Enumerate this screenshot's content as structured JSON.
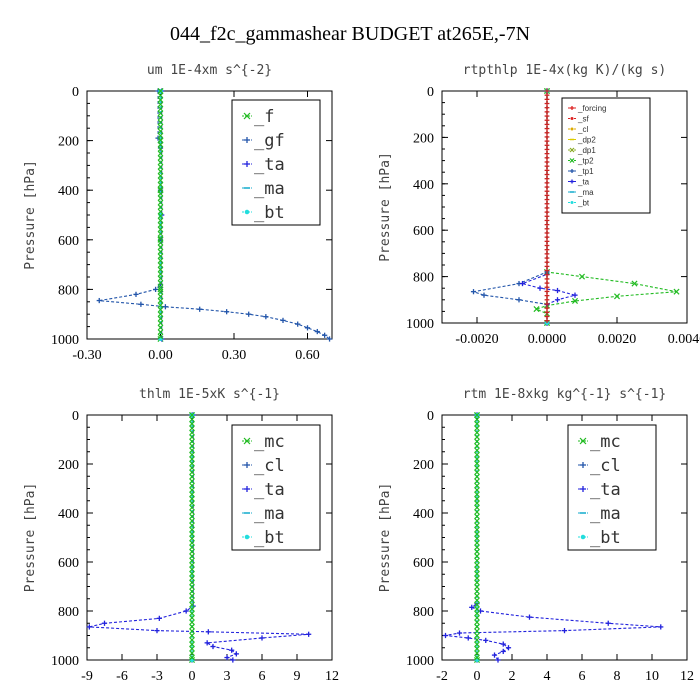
{
  "suptitle": "044_f2c_gammashear  BUDGET at265E,-7N",
  "chart_data": [
    {
      "type": "line",
      "title": "um    1E-4xm  s^{-2}",
      "ylabel": "Pressure [hPa]",
      "xlim": [
        -0.3,
        0.7
      ],
      "ylim": [
        1000,
        0
      ],
      "xticks": [
        "-0.30",
        "0.00",
        "0.30",
        "0.60"
      ],
      "xtick_values": [
        -0.3,
        0.0,
        0.3,
        0.6
      ],
      "yticks": [
        "0",
        "200",
        "400",
        "600",
        "800",
        "1000"
      ],
      "ytick_values": [
        0,
        200,
        400,
        600,
        800,
        1000
      ],
      "legend_style": "big",
      "series": [
        {
          "name": "_f",
          "color": "#22bb22",
          "marker": "x",
          "points": [
            [
              0,
              0
            ],
            [
              0,
              200
            ],
            [
              0,
              400
            ],
            [
              0,
              600
            ],
            [
              0,
              800
            ],
            [
              0,
              1000
            ]
          ]
        },
        {
          "name": "_gf",
          "color": "#2255aa",
          "marker": "+",
          "points": [
            [
              -0.01,
              0
            ],
            [
              -0.01,
              190
            ],
            [
              0.0,
              230
            ],
            [
              0.0,
              400
            ],
            [
              0.0,
              600
            ],
            [
              0.0,
              780
            ],
            [
              -0.02,
              800
            ],
            [
              -0.1,
              820
            ],
            [
              -0.25,
              845
            ],
            [
              -0.08,
              860
            ],
            [
              0.02,
              870
            ],
            [
              0.16,
              880
            ],
            [
              0.27,
              890
            ],
            [
              0.36,
              900
            ],
            [
              0.43,
              910
            ],
            [
              0.5,
              925
            ],
            [
              0.56,
              940
            ],
            [
              0.6,
              955
            ],
            [
              0.64,
              970
            ],
            [
              0.67,
              985
            ],
            [
              0.69,
              1000
            ]
          ]
        },
        {
          "name": "_ta",
          "color": "#2222dd",
          "marker": "+",
          "points": [
            [
              0.005,
              0
            ],
            [
              0.005,
              500
            ],
            [
              0.005,
              1000
            ]
          ]
        },
        {
          "name": "_ma",
          "color": "#11aacc",
          "marker": "-",
          "points": [
            [
              0,
              0
            ],
            [
              0,
              1000
            ]
          ]
        },
        {
          "name": "_bt",
          "color": "#22dddd",
          "marker": "*",
          "points": [
            [
              0,
              0
            ],
            [
              0,
              500
            ],
            [
              0,
              1000
            ]
          ]
        }
      ]
    },
    {
      "type": "line",
      "title": "rtpthlp   1E-4x(kg K)/(kg s)",
      "ylabel": "Pressure [hPa]",
      "xlim": [
        -0.003,
        0.004
      ],
      "ylim": [
        1000,
        0
      ],
      "xticks": [
        "-0.0020",
        "0.0000",
        "0.0020",
        "0.0040"
      ],
      "xtick_values": [
        -0.002,
        0.0,
        0.002,
        0.004
      ],
      "yticks": [
        "0",
        "200",
        "400",
        "600",
        "800",
        "1000"
      ],
      "ytick_values": [
        0,
        200,
        400,
        600,
        800,
        1000
      ],
      "legend_style": "small",
      "series": [
        {
          "name": "_forcing",
          "color": "#dd2222",
          "marker": "+",
          "points": [
            [
              0,
              0
            ],
            [
              0,
              1000
            ]
          ]
        },
        {
          "name": "_sf",
          "color": "#dd2222",
          "marker": "*",
          "points": [
            [
              0,
              0
            ],
            [
              0,
              1000
            ]
          ]
        },
        {
          "name": "_cl",
          "color": "#ddaa00",
          "marker": "*",
          "points": [
            [
              0,
              0
            ],
            [
              0,
              1000
            ]
          ]
        },
        {
          "name": "_dp2",
          "color": "#ddcc00",
          "marker": "-",
          "points": [
            [
              0,
              0
            ],
            [
              0,
              1000
            ]
          ]
        },
        {
          "name": "_dp1",
          "color": "#88aa22",
          "marker": "x",
          "points": [
            [
              0,
              0
            ],
            [
              0,
              1000
            ]
          ]
        },
        {
          "name": "_tp2",
          "color": "#22bb22",
          "marker": "x",
          "points": [
            [
              0,
              0
            ],
            [
              0,
              780
            ],
            [
              0.001,
              800
            ],
            [
              0.0025,
              830
            ],
            [
              0.0037,
              865
            ],
            [
              0.002,
              885
            ],
            [
              0.0008,
              905
            ],
            [
              0,
              925
            ],
            [
              -0.0003,
              940
            ],
            [
              0,
              960
            ],
            [
              0,
              1000
            ]
          ]
        },
        {
          "name": "_tp1",
          "color": "#2255aa",
          "marker": "+",
          "points": [
            [
              0,
              0
            ],
            [
              0,
              780
            ],
            [
              -0.0008,
              830
            ],
            [
              -0.0021,
              865
            ],
            [
              -0.0018,
              880
            ],
            [
              -0.0008,
              900
            ],
            [
              0,
              920
            ],
            [
              0,
              1000
            ]
          ]
        },
        {
          "name": "_ta",
          "color": "#2222dd",
          "marker": "+",
          "points": [
            [
              0,
              0
            ],
            [
              0,
              790
            ],
            [
              -0.0007,
              830
            ],
            [
              -0.0002,
              850
            ],
            [
              0.0003,
              860
            ],
            [
              0.0008,
              880
            ],
            [
              0.0003,
              900
            ],
            [
              0,
              920
            ],
            [
              0,
              1000
            ]
          ]
        },
        {
          "name": "_ma",
          "color": "#11aacc",
          "marker": "-",
          "points": [
            [
              0,
              0
            ],
            [
              0,
              1000
            ]
          ]
        },
        {
          "name": "_bt",
          "color": "#22dddd",
          "marker": "*",
          "points": [
            [
              0,
              0
            ],
            [
              0,
              1000
            ]
          ]
        }
      ]
    },
    {
      "type": "line",
      "title": "thlm   1E-5xK  s^{-1}",
      "ylabel": "Pressure [hPa]",
      "xlim": [
        -9,
        12
      ],
      "ylim": [
        1000,
        0
      ],
      "xticks": [
        "-9",
        "-6",
        "-3",
        "0",
        "3",
        "6",
        "9",
        "12"
      ],
      "xtick_values": [
        -9,
        -6,
        -3,
        0,
        3,
        6,
        9,
        12
      ],
      "yticks": [
        "0",
        "200",
        "400",
        "600",
        "800",
        "1000"
      ],
      "ytick_values": [
        0,
        200,
        400,
        600,
        800,
        1000
      ],
      "legend_style": "big",
      "series": [
        {
          "name": "_mc",
          "color": "#22bb22",
          "marker": "x",
          "points": [
            [
              0,
              0
            ],
            [
              0,
              1000
            ]
          ]
        },
        {
          "name": "_cl",
          "color": "#2255aa",
          "marker": "+",
          "points": [
            [
              0,
              0
            ],
            [
              0,
              1000
            ]
          ]
        },
        {
          "name": "_ta",
          "color": "#2222dd",
          "marker": "+",
          "points": [
            [
              0.1,
              0
            ],
            [
              0.1,
              780
            ],
            [
              -0.5,
              800
            ],
            [
              -2.8,
              830
            ],
            [
              -7.5,
              850
            ],
            [
              -8.8,
              865
            ],
            [
              -3,
              880
            ],
            [
              1.4,
              885
            ],
            [
              10,
              895
            ],
            [
              6,
              910
            ],
            [
              1.3,
              930
            ],
            [
              1.8,
              945
            ],
            [
              3.4,
              960
            ],
            [
              3.8,
              975
            ],
            [
              3.0,
              990
            ],
            [
              3.5,
              1000
            ]
          ]
        },
        {
          "name": "_ma",
          "color": "#11aacc",
          "marker": "-",
          "points": [
            [
              0,
              0
            ],
            [
              0,
              1000
            ]
          ]
        },
        {
          "name": "_bt",
          "color": "#22dddd",
          "marker": "*",
          "points": [
            [
              0,
              0
            ],
            [
              0,
              1000
            ]
          ]
        }
      ]
    },
    {
      "type": "line",
      "title": "rtm   1E-8xkg  kg^{-1} s^{-1}",
      "ylabel": "Pressure [hPa]",
      "xlim": [
        -2,
        12
      ],
      "ylim": [
        1000,
        0
      ],
      "xticks": [
        "-2",
        "0",
        "2",
        "4",
        "6",
        "8",
        "10",
        "12"
      ],
      "xtick_values": [
        -2,
        0,
        2,
        4,
        6,
        8,
        10,
        12
      ],
      "yticks": [
        "0",
        "200",
        "400",
        "600",
        "800",
        "1000"
      ],
      "ytick_values": [
        0,
        200,
        400,
        600,
        800,
        1000
      ],
      "legend_style": "big",
      "series": [
        {
          "name": "_mc",
          "color": "#22bb22",
          "marker": "x",
          "points": [
            [
              0,
              0
            ],
            [
              0,
              1000
            ]
          ]
        },
        {
          "name": "_cl",
          "color": "#2255aa",
          "marker": "+",
          "points": [
            [
              0,
              0
            ],
            [
              0,
              1000
            ]
          ]
        },
        {
          "name": "_ta",
          "color": "#2222dd",
          "marker": "+",
          "points": [
            [
              0,
              0
            ],
            [
              0,
              770
            ],
            [
              -0.3,
              785
            ],
            [
              0.2,
              800
            ],
            [
              3,
              825
            ],
            [
              7.5,
              850
            ],
            [
              10.5,
              865
            ],
            [
              5,
              880
            ],
            [
              -1,
              890
            ],
            [
              -1.8,
              900
            ],
            [
              -0.5,
              910
            ],
            [
              0.5,
              920
            ],
            [
              1.5,
              935
            ],
            [
              1.8,
              950
            ],
            [
              1.5,
              965
            ],
            [
              1.0,
              980
            ],
            [
              1.2,
              1000
            ]
          ]
        },
        {
          "name": "_ma",
          "color": "#11aacc",
          "marker": "-",
          "points": [
            [
              0,
              0
            ],
            [
              0,
              1000
            ]
          ]
        },
        {
          "name": "_bt",
          "color": "#22dddd",
          "marker": "*",
          "points": [
            [
              0,
              0
            ],
            [
              0,
              1000
            ]
          ]
        }
      ]
    }
  ]
}
